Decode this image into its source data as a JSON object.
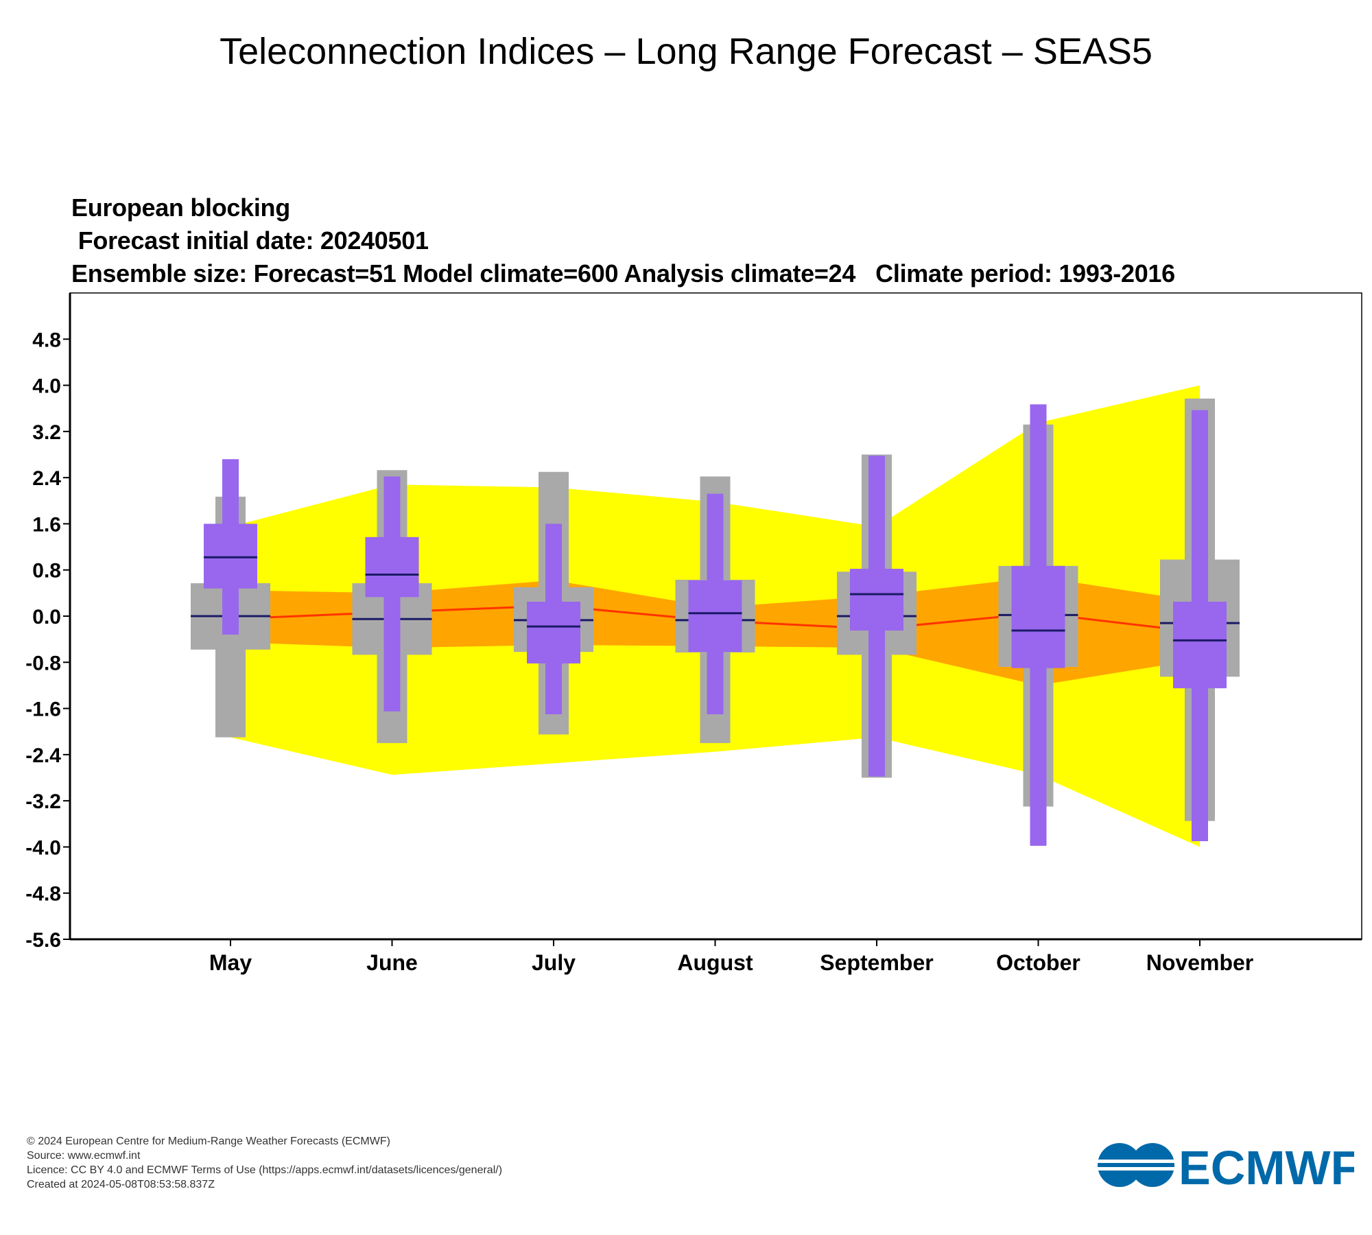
{
  "page": {
    "title": "Teleconnection Indices – Long Range Forecast – SEAS5",
    "subtitle_lines": [
      "European blocking",
      " Forecast initial date: 20240501",
      "Ensemble size: Forecast=51 Model climate=600 Analysis climate=24   Climate period: 1993-2016"
    ]
  },
  "footer": {
    "copyright": "© 2024 European Centre for Medium-Range Weather Forecasts (ECMWF)",
    "source": "Source: www.ecmwf.int",
    "licence": "Licence: CC BY 4.0 and ECMWF Terms of Use (https://apps.ecmwf.int/datasets/licences/general/)",
    "created": "Created at 2024-05-08T08:53:58.837Z"
  },
  "logo": {
    "text": "ECMWF",
    "color": "#0069a9"
  },
  "colors": {
    "analysis_outer": "#ffff00",
    "analysis_inner": "#ffa500",
    "analysis_median": "#ff3300",
    "model_climate": "#a9a9a9",
    "forecast": "#9966ee",
    "median": "#1a1a66"
  },
  "chart_data": {
    "type": "box",
    "categories": [
      "May",
      "June",
      "July",
      "August",
      "September",
      "October",
      "November"
    ],
    "ylim": [
      -5.6,
      5.6
    ],
    "yticks": [
      "4.8",
      "4.0",
      "3.2",
      "2.4",
      "1.6",
      "0.8",
      "0.0",
      "-0.8",
      "-1.6",
      "-2.4",
      "-3.2",
      "-4.0",
      "-4.8",
      "-5.6"
    ],
    "analysis_climate": {
      "outer_upper": [
        1.55,
        2.28,
        2.23,
        1.98,
        1.55,
        3.35,
        4.0
      ],
      "outer_lower": [
        -2.1,
        -2.75,
        -2.55,
        -2.35,
        -2.1,
        -2.75,
        -4.0
      ],
      "inner_upper": [
        0.45,
        0.4,
        0.62,
        0.15,
        0.35,
        0.68,
        0.25
      ],
      "inner_lower": [
        -0.45,
        -0.55,
        -0.5,
        -0.52,
        -0.55,
        -1.2,
        -0.75
      ],
      "median": [
        -0.05,
        0.07,
        0.18,
        -0.08,
        -0.22,
        0.05,
        -0.28
      ]
    },
    "model_climate": {
      "min": [
        -2.1,
        -2.2,
        -2.05,
        -2.2,
        -2.8,
        -3.3,
        -3.55
      ],
      "p25": [
        -0.58,
        -0.67,
        -0.62,
        -0.63,
        -0.67,
        -0.88,
        -1.05
      ],
      "median": [
        0.0,
        -0.05,
        -0.07,
        -0.07,
        0.0,
        0.02,
        -0.12
      ],
      "p75": [
        0.57,
        0.57,
        0.5,
        0.63,
        0.77,
        0.87,
        0.98
      ],
      "max": [
        2.07,
        2.53,
        2.5,
        2.42,
        2.8,
        3.32,
        3.77
      ]
    },
    "forecast": {
      "min": [
        -0.32,
        -1.65,
        -1.7,
        -1.7,
        -2.78,
        -3.98,
        -3.9
      ],
      "p25": [
        0.48,
        0.33,
        -0.82,
        -0.62,
        -0.25,
        -0.9,
        -1.25
      ],
      "median": [
        1.02,
        0.72,
        -0.18,
        0.05,
        0.38,
        -0.25,
        -0.42
      ],
      "p75": [
        1.6,
        1.37,
        0.25,
        0.62,
        0.82,
        0.87,
        0.25
      ],
      "max": [
        2.72,
        2.42,
        1.6,
        2.12,
        2.78,
        3.67,
        3.57
      ]
    }
  }
}
